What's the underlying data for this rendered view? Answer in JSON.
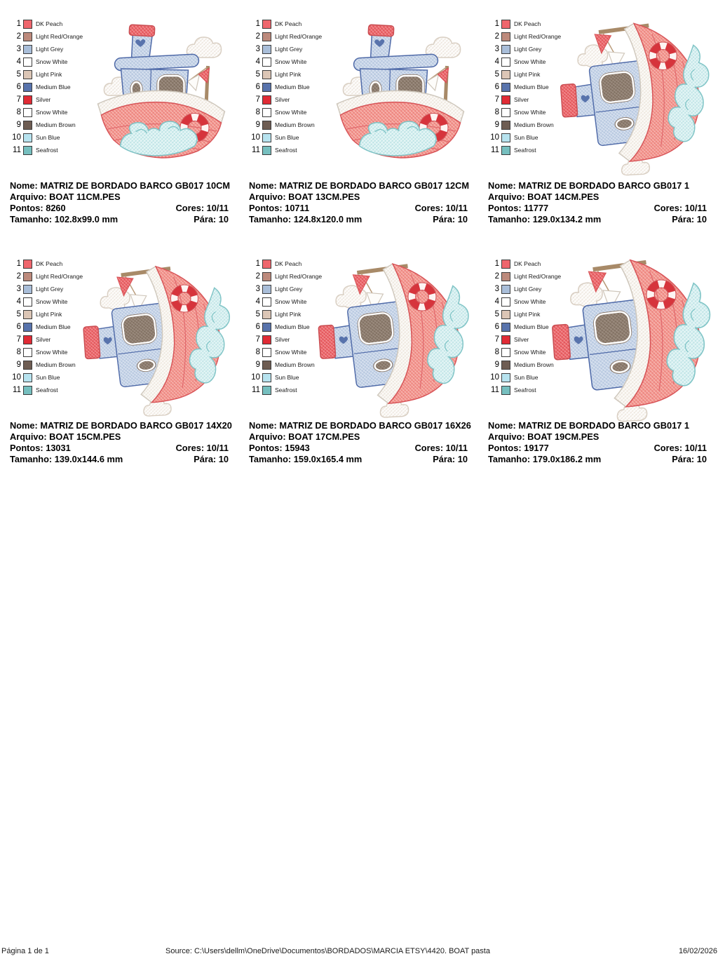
{
  "labels": {
    "nome": "Nome:",
    "arquivo": "Arquivo:",
    "pontos": "Pontos:",
    "cores": "Cores:",
    "tamanho": "Tamanho:",
    "para": "Pára:"
  },
  "thread_colors": [
    {
      "num": "1",
      "name": "DK Peach",
      "hex": "#ef666d"
    },
    {
      "num": "2",
      "name": "Light Red/Orange",
      "hex": "#bd8a7c"
    },
    {
      "num": "3",
      "name": "Light Grey",
      "hex": "#a9bed9"
    },
    {
      "num": "4",
      "name": "Snow White",
      "hex": "#ffffff"
    },
    {
      "num": "5",
      "name": "Light Pink",
      "hex": "#dcc6b6"
    },
    {
      "num": "6",
      "name": "Medium Blue",
      "hex": "#5873ac"
    },
    {
      "num": "7",
      "name": "Silver",
      "hex": "#e02b35"
    },
    {
      "num": "8",
      "name": "Snow White",
      "hex": "#ffffff"
    },
    {
      "num": "9",
      "name": "Medium Brown",
      "hex": "#6e5d53"
    },
    {
      "num": "10",
      "name": "Sun Blue",
      "hex": "#b7e3ef"
    },
    {
      "num": "11",
      "name": "Seafrost",
      "hex": "#76bfbf"
    }
  ],
  "designs": [
    {
      "name": "MATRIZ DE BORDADO BARCO GB017 10CM",
      "file": "BOAT 11CM.PES",
      "stitches": "8260",
      "colors": "10/11",
      "size": "102.8x99.0 mm",
      "stops": "10",
      "orientation": "upright"
    },
    {
      "name": "MATRIZ DE BORDADO BARCO GB017 12CM",
      "file": "BOAT 13CM.PES",
      "stitches": "10711",
      "colors": "10/11",
      "size": "124.8x120.0 mm",
      "stops": "10",
      "orientation": "upright"
    },
    {
      "name": "MATRIZ DE BORDADO BARCO GB017 1",
      "file": "BOAT 14CM.PES",
      "stitches": "11777",
      "colors": "10/11",
      "size": "129.0x134.2 mm",
      "stops": "10",
      "orientation": "rotated"
    },
    {
      "name": "MATRIZ DE BORDADO BARCO GB017 14X20",
      "file": "BOAT 15CM.PES",
      "stitches": "13031",
      "colors": "10/11",
      "size": "139.0x144.6 mm",
      "stops": "10",
      "orientation": "rotated"
    },
    {
      "name": "MATRIZ DE BORDADO BARCO GB017 16X26",
      "file": "BOAT 17CM.PES",
      "stitches": "15943",
      "colors": "10/11",
      "size": "159.0x165.4 mm",
      "stops": "10",
      "orientation": "rotated"
    },
    {
      "name": "MATRIZ DE BORDADO BARCO GB017 1",
      "file": "BOAT 19CM.PES",
      "stitches": "19177",
      "colors": "10/11",
      "size": "179.0x186.2 mm",
      "stops": "10",
      "orientation": "rotated"
    }
  ],
  "footer": {
    "page_label": "Página 1 de 1",
    "source_text": "Source: C:\\Users\\dellm\\OneDrive\\Documentos\\BORDADOS\\MARCIA ETSY\\4420. BOAT pasta",
    "date": "16/02/2026"
  }
}
